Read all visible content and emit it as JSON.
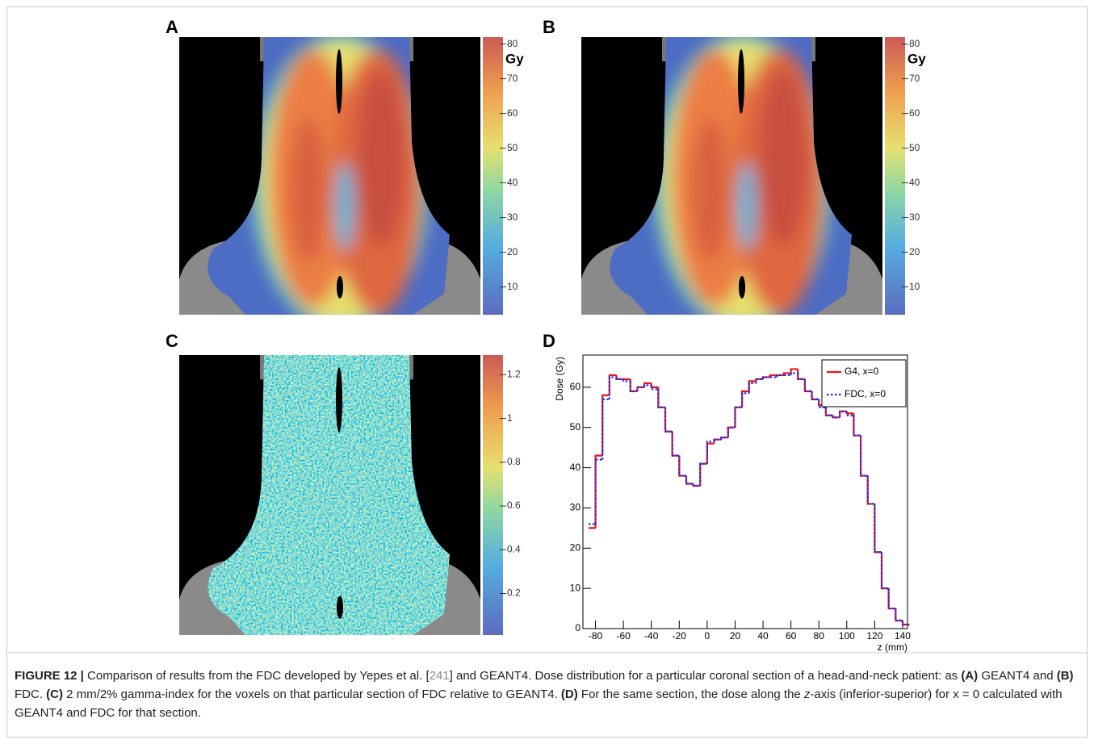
{
  "figure": {
    "panels": [
      {
        "label": "A",
        "colorbar": {
          "unit": "Gy",
          "lim": [
            2,
            82
          ],
          "ticks": [
            10,
            20,
            30,
            40,
            50,
            60,
            70,
            80
          ]
        }
      },
      {
        "label": "B",
        "colorbar": {
          "unit": "Gy",
          "lim": [
            2,
            82
          ],
          "ticks": [
            10,
            20,
            30,
            40,
            50,
            60,
            70,
            80
          ]
        }
      },
      {
        "label": "C",
        "colorbar": {
          "lim": [
            0.01,
            1.29
          ],
          "ticks": [
            0.2,
            0.4,
            0.6,
            0.8,
            1,
            1.2
          ]
        }
      },
      {
        "label": "D"
      }
    ]
  },
  "chart_data": {
    "type": "line",
    "step": true,
    "xlabel": "z (mm)",
    "ylabel": "Dose (Gy)",
    "xlim": [
      -89,
      143.5
    ],
    "ylim": [
      0,
      68
    ],
    "xticks": [
      -80,
      -60,
      -40,
      -20,
      0,
      20,
      40,
      60,
      80,
      100,
      120,
      140
    ],
    "yticks": [
      0,
      10,
      20,
      30,
      40,
      50,
      60
    ],
    "legend": "top-right",
    "x": [
      -85,
      -80,
      -75,
      -70,
      -65,
      -60,
      -55,
      -50,
      -45,
      -40,
      -35,
      -30,
      -25,
      -20,
      -15,
      -10,
      -5,
      0,
      5,
      10,
      15,
      20,
      25,
      30,
      35,
      40,
      45,
      50,
      55,
      60,
      65,
      70,
      75,
      80,
      85,
      90,
      95,
      100,
      105,
      110,
      115,
      120,
      125,
      130,
      135,
      140
    ],
    "series": [
      {
        "name": "G4, x=0",
        "color": "#e8141b",
        "style": "solid",
        "values": [
          25,
          43,
          58,
          63,
          62,
          62,
          59,
          60,
          61,
          60,
          55,
          49,
          43,
          38,
          36,
          35.5,
          41,
          46,
          47,
          47.5,
          50,
          55,
          59,
          61.5,
          62,
          62.5,
          63,
          63,
          63.5,
          64.5,
          62,
          59,
          57,
          55.5,
          53,
          52.5,
          54,
          53.5,
          48,
          38,
          31,
          19,
          10,
          5,
          2,
          1
        ]
      },
      {
        "name": "FDC, x=0",
        "color": "#1f2ee8",
        "style": "dotted",
        "values": [
          26,
          42,
          57,
          62.5,
          62,
          61.5,
          59,
          60,
          60.5,
          59.5,
          55,
          49,
          43,
          38,
          36,
          35.5,
          41,
          46.5,
          47,
          47.5,
          50,
          55,
          58.5,
          61,
          62,
          62.5,
          62.5,
          63,
          63,
          63.5,
          62,
          59,
          57,
          55,
          53,
          52.5,
          54,
          53,
          48,
          38,
          31,
          19,
          10,
          5,
          2,
          1
        ]
      }
    ]
  },
  "caption": {
    "segments": [
      "FIGURE 12 |",
      " Comparison of results from the FDC developed by Yepes et al. [",
      "241",
      "] and GEANT4. Dose distribution for a particular coronal section of a head-and-neck patient: as ",
      "(A)",
      " GEANT4 and ",
      "(B)",
      " FDC. ",
      "(C)",
      " 2 mm/2% gamma-index for the voxels on that particular section of FDC relative to GEANT4. ",
      "(D)",
      " For the same section, the dose along the ",
      "z",
      "-axis (inferior-superior) for x = 0 calculated with GEANT4 and FDC for that section."
    ]
  }
}
